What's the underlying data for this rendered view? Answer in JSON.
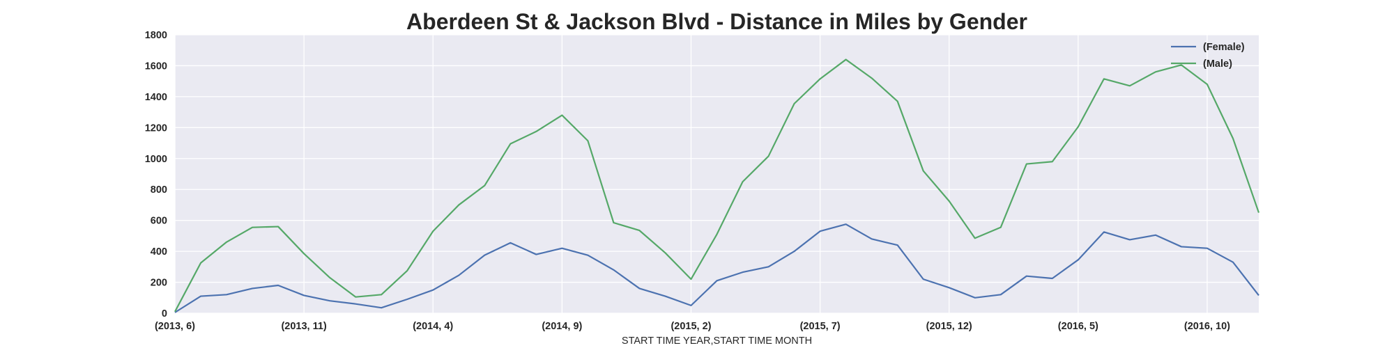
{
  "chart_data": {
    "type": "line",
    "title": "Aberdeen St & Jackson Blvd - Distance in Miles by Gender",
    "xlabel": "START TIME YEAR,START TIME MONTH",
    "ylabel": "",
    "ylim": [
      0,
      1800
    ],
    "yticks": [
      0,
      200,
      400,
      600,
      800,
      1000,
      1200,
      1400,
      1600,
      1800
    ],
    "x": [
      "(2013, 6)",
      "(2013, 7)",
      "(2013, 8)",
      "(2013, 9)",
      "(2013, 10)",
      "(2013, 11)",
      "(2013, 12)",
      "(2014, 1)",
      "(2014, 2)",
      "(2014, 3)",
      "(2014, 4)",
      "(2014, 5)",
      "(2014, 6)",
      "(2014, 7)",
      "(2014, 8)",
      "(2014, 9)",
      "(2014, 10)",
      "(2014, 11)",
      "(2014, 12)",
      "(2015, 1)",
      "(2015, 2)",
      "(2015, 3)",
      "(2015, 4)",
      "(2015, 5)",
      "(2015, 6)",
      "(2015, 7)",
      "(2015, 8)",
      "(2015, 9)",
      "(2015, 10)",
      "(2015, 11)",
      "(2015, 12)",
      "(2016, 1)",
      "(2016, 2)",
      "(2016, 3)",
      "(2016, 4)",
      "(2016, 5)",
      "(2016, 6)",
      "(2016, 7)",
      "(2016, 8)",
      "(2016, 9)",
      "(2016, 10)",
      "(2016, 11)",
      "(2016, 12)"
    ],
    "xtick_labels": [
      "(2013, 6)",
      "(2013, 11)",
      "(2014, 4)",
      "(2014, 9)",
      "(2015, 2)",
      "(2015, 7)",
      "(2015, 12)",
      "(2016, 5)",
      "(2016, 10)"
    ],
    "series": [
      {
        "name": "(Female)",
        "color": "#4c72b0",
        "values": [
          5,
          110,
          120,
          160,
          180,
          115,
          80,
          60,
          35,
          90,
          150,
          245,
          375,
          455,
          380,
          420,
          375,
          280,
          160,
          110,
          50,
          210,
          265,
          300,
          400,
          530,
          575,
          480,
          440,
          220,
          165,
          100,
          120,
          240,
          225,
          345,
          525,
          475,
          505,
          430,
          420,
          330,
          115
        ]
      },
      {
        "name": "(Male)",
        "color": "#55a868",
        "values": [
          10,
          325,
          460,
          555,
          560,
          385,
          230,
          105,
          120,
          275,
          530,
          700,
          825,
          1095,
          1175,
          1280,
          1115,
          585,
          535,
          390,
          220,
          510,
          850,
          1015,
          1355,
          1515,
          1640,
          1520,
          1370,
          920,
          725,
          485,
          555,
          965,
          980,
          1205,
          1515,
          1470,
          1560,
          1605,
          1480,
          1130,
          650
        ]
      }
    ],
    "grid": true,
    "legend_position": "top-right",
    "background_color": "#eaeaf2",
    "grid_color": "#ffffff"
  }
}
